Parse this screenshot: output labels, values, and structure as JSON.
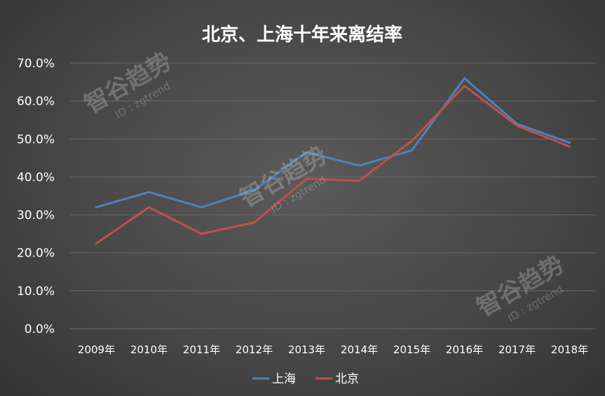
{
  "chart_data": {
    "type": "line",
    "title": "北京、上海十年来离结率",
    "xlabel": "",
    "ylabel": "",
    "categories": [
      "2009年",
      "2010年",
      "2011年",
      "2012年",
      "2013年",
      "2014年",
      "2015年",
      "2016年",
      "2017年",
      "2018年"
    ],
    "y_tick_labels": [
      "0.0%",
      "10.0%",
      "20.0%",
      "30.0%",
      "40.0%",
      "50.0%",
      "60.0%",
      "70.0%"
    ],
    "ylim": [
      0,
      70
    ],
    "grid": true,
    "legend_position": "bottom",
    "series": [
      {
        "name": "上海",
        "color": "#4f81bd",
        "values": [
          32,
          36,
          32,
          36.5,
          46.5,
          43,
          47,
          66,
          54,
          49
        ]
      },
      {
        "name": "北京",
        "color": "#c0504d",
        "values": [
          22.5,
          32,
          25,
          28,
          39.5,
          39,
          49.5,
          64,
          53.5,
          48
        ]
      }
    ]
  },
  "watermark": {
    "text": "智谷趋势",
    "id_text": "ID : zgtrend"
  }
}
